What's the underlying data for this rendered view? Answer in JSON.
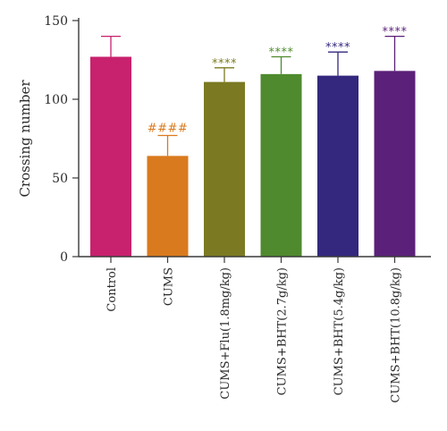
{
  "chart_data": {
    "type": "bar",
    "title": "",
    "xlabel": "",
    "ylabel": "Crossing number",
    "ylim": [
      0,
      150
    ],
    "yticks": [
      0,
      50,
      100,
      150
    ],
    "grid": false,
    "categories": [
      "Control",
      "CUMS",
      "CUMS+Flu(1.8mg/kg)",
      "CUMS+BHT(2.7g/kg)",
      "CUMS+BHT(5.4g/kg)",
      "CUMS+BHT(10.8g/kg)"
    ],
    "values": [
      127,
      64,
      111,
      116,
      115,
      118
    ],
    "errors": [
      13,
      13,
      9,
      11,
      15,
      22
    ],
    "colors": [
      "#c8216e",
      "#d97a1e",
      "#7b7a22",
      "#4f8a2e",
      "#33287e",
      "#5b2079"
    ],
    "significance": [
      "",
      "####",
      "****",
      "****",
      "****",
      "****"
    ]
  }
}
